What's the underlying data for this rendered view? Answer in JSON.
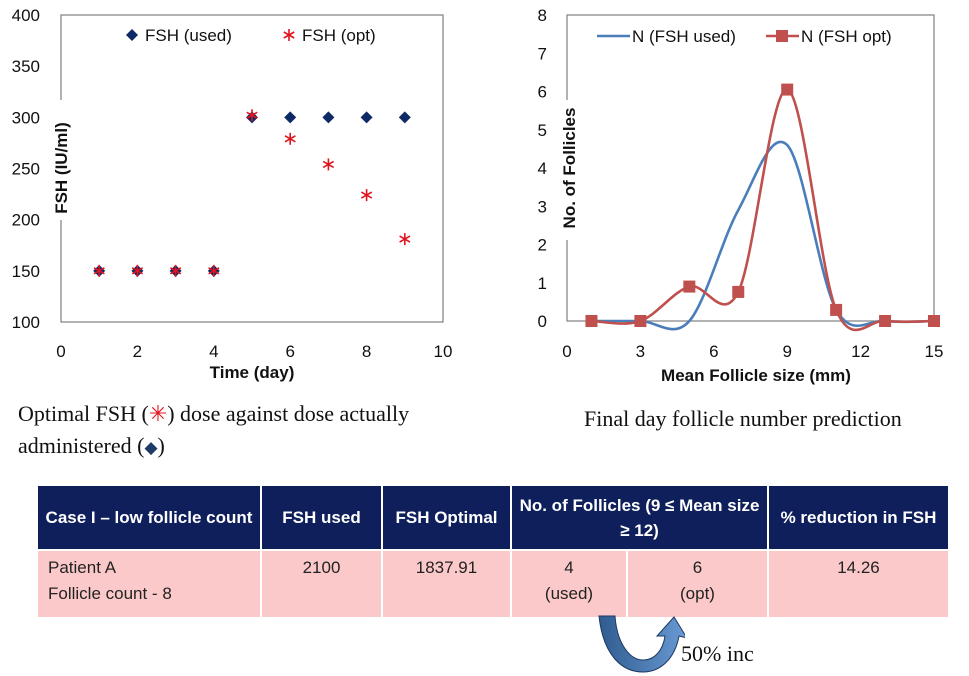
{
  "chart_data": [
    {
      "type": "scatter",
      "title": "",
      "xlabel": "Time (day)",
      "ylabel": "FSH (IU/ml)",
      "xlim": [
        0,
        10
      ],
      "ylim": [
        100,
        400
      ],
      "xticks": [
        0,
        2,
        4,
        6,
        8,
        10
      ],
      "yticks": [
        100,
        150,
        200,
        250,
        300,
        350,
        400
      ],
      "grid": false,
      "legend_position": "top",
      "series": [
        {
          "name": "FSH (used)",
          "marker": "diamond",
          "color": "#0e2a66",
          "x": [
            1,
            2,
            3,
            4,
            5,
            6,
            7,
            8,
            9
          ],
          "y": [
            150,
            150,
            150,
            150,
            300,
            300,
            300,
            300,
            300
          ]
        },
        {
          "name": "FSH (opt)",
          "marker": "star",
          "color": "#e0141e",
          "x": [
            1,
            2,
            3,
            4,
            5,
            6,
            7,
            8,
            9
          ],
          "y": [
            150,
            150,
            150,
            150,
            302,
            279,
            254,
            224,
            181
          ]
        }
      ]
    },
    {
      "type": "line",
      "title": "",
      "xlabel": "Mean Follicle size (mm)",
      "ylabel": "No. of Follicles",
      "xlim": [
        0,
        15
      ],
      "ylim": [
        0,
        8
      ],
      "xticks": [
        0,
        3,
        6,
        9,
        12,
        15
      ],
      "yticks": [
        0,
        1,
        2,
        3,
        4,
        5,
        6,
        7,
        8
      ],
      "grid": false,
      "legend_position": "top",
      "smooth": true,
      "series": [
        {
          "name": "N (FSH used)",
          "marker": "none",
          "color": "#4a7ebb",
          "x": [
            1,
            3,
            5,
            7,
            9,
            11,
            13,
            15
          ],
          "y": [
            0,
            0,
            0,
            2.9,
            4.6,
            0.3,
            0,
            0
          ]
        },
        {
          "name": "N (FSH opt)",
          "marker": "square",
          "color": "#c0504d",
          "x": [
            1,
            3,
            5,
            7,
            9,
            11,
            13,
            15
          ],
          "y": [
            0,
            0,
            0.9,
            0.76,
            6.05,
            0.29,
            0,
            0
          ]
        }
      ]
    }
  ],
  "captions": {
    "left_part1": "Optimal FSH (",
    "left_star": "✳",
    "left_part2": ") dose against dose actually administered (",
    "left_diamond": "◆",
    "left_part3": ")",
    "right": "Final day follicle number prediction"
  },
  "table": {
    "headers": {
      "case": "Case I – low follicle count",
      "fsh_used": "FSH used",
      "fsh_optimal": "FSH Optimal",
      "follicles": "No. of Follicles (9 ≤ Mean size ≥ 12)",
      "reduction": "% reduction in FSH"
    },
    "row": {
      "patient": "Patient A",
      "follicle_count": "Follicle count - 8",
      "fsh_used": "2100",
      "fsh_optimal": "1837.91",
      "follicles_used": "4",
      "follicles_used_label": "(used)",
      "follicles_opt": "6",
      "follicles_opt_label": "(opt)",
      "reduction": "14.26"
    }
  },
  "annotation": {
    "increase_label": "50% inc"
  }
}
